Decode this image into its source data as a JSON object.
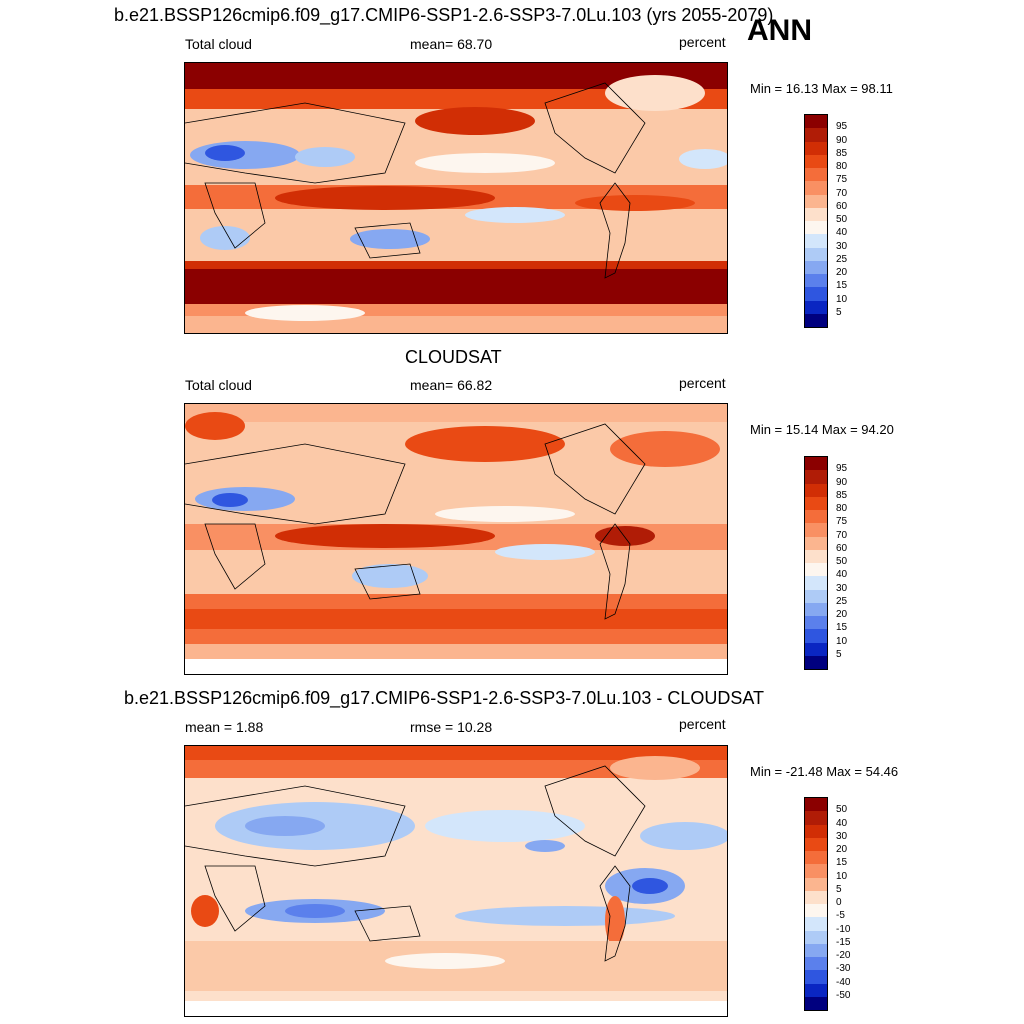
{
  "annotation": "ANN",
  "panels": [
    {
      "id": "model",
      "title": "b.e21.BSSP126cmip6.f09_g17.CMIP6-SSP1-2.6-SSP3-7.0Lu.103 (yrs 2055-2079)",
      "left_label": "Total cloud",
      "center_label": "mean=  68.70",
      "units": "percent",
      "minmax": "Min =  16.13 Max =  98.11",
      "colorbar_labels": [
        "95",
        "90",
        "85",
        "80",
        "75",
        "70",
        "60",
        "50",
        "40",
        "30",
        "25",
        "20",
        "15",
        "10",
        "5"
      ],
      "colorbar_colors": [
        "#8b0000",
        "#b01c06",
        "#d12e05",
        "#e94a14",
        "#f46d3a",
        "#f99063",
        "#fbb58f",
        "#fde0cb",
        "#fdf6ef",
        "#d3e6fb",
        "#aecbf6",
        "#86a8f1",
        "#5b80ec",
        "#2f56e0",
        "#0a26c2",
        "#00007f"
      ]
    },
    {
      "id": "obs",
      "title": "CLOUDSAT",
      "left_label": "Total cloud",
      "center_label": "mean=  66.82",
      "units": "percent",
      "minmax": "Min =  15.14 Max =  94.20",
      "colorbar_labels": [
        "95",
        "90",
        "85",
        "80",
        "75",
        "70",
        "60",
        "50",
        "40",
        "30",
        "25",
        "20",
        "15",
        "10",
        "5"
      ],
      "colorbar_colors": [
        "#8b0000",
        "#b01c06",
        "#d12e05",
        "#e94a14",
        "#f46d3a",
        "#f99063",
        "#fbb58f",
        "#fde0cb",
        "#fdf6ef",
        "#d3e6fb",
        "#aecbf6",
        "#86a8f1",
        "#5b80ec",
        "#2f56e0",
        "#0a26c2",
        "#00007f"
      ]
    },
    {
      "id": "diff",
      "title": "b.e21.BSSP126cmip6.f09_g17.CMIP6-SSP1-2.6-SSP3-7.0Lu.103 - CLOUDSAT",
      "left_label": "mean =   1.88",
      "center_label": "rmse =  10.28",
      "units": "percent",
      "minmax": "Min = -21.48 Max =  54.46",
      "colorbar_labels": [
        "50",
        "40",
        "30",
        "20",
        "15",
        "10",
        "5",
        "0",
        "-5",
        "-10",
        "-15",
        "-20",
        "-30",
        "-40",
        "-50"
      ],
      "colorbar_colors": [
        "#8b0000",
        "#b01c06",
        "#d12e05",
        "#e94a14",
        "#f46d3a",
        "#f99063",
        "#fbb58f",
        "#fde0cb",
        "#fdf6ef",
        "#d3e6fb",
        "#aecbf6",
        "#86a8f1",
        "#5b80ec",
        "#2f56e0",
        "#0a26c2",
        "#00007f"
      ]
    }
  ],
  "chart_data": [
    {
      "type": "heatmap",
      "title": "b.e21.BSSP126cmip6.f09_g17.CMIP6-SSP1-2.6-SSP3-7.0Lu.103 (yrs 2055-2079)",
      "variable": "Total cloud",
      "units": "percent",
      "mean": 68.7,
      "min": 16.13,
      "max": 98.11,
      "contour_levels": [
        5,
        10,
        15,
        20,
        25,
        30,
        40,
        50,
        60,
        70,
        75,
        80,
        85,
        90,
        95
      ]
    },
    {
      "type": "heatmap",
      "title": "CLOUDSAT",
      "variable": "Total cloud",
      "units": "percent",
      "mean": 66.82,
      "min": 15.14,
      "max": 94.2,
      "contour_levels": [
        5,
        10,
        15,
        20,
        25,
        30,
        40,
        50,
        60,
        70,
        75,
        80,
        85,
        90,
        95
      ]
    },
    {
      "type": "heatmap",
      "title": "b.e21.BSSP126cmip6.f09_g17.CMIP6-SSP1-2.6-SSP3-7.0Lu.103 - CLOUDSAT",
      "units": "percent",
      "mean": 1.88,
      "rmse": 10.28,
      "min": -21.48,
      "max": 54.46,
      "contour_levels": [
        -50,
        -40,
        -30,
        -20,
        -15,
        -10,
        -5,
        0,
        5,
        10,
        15,
        20,
        30,
        40,
        50
      ]
    }
  ]
}
